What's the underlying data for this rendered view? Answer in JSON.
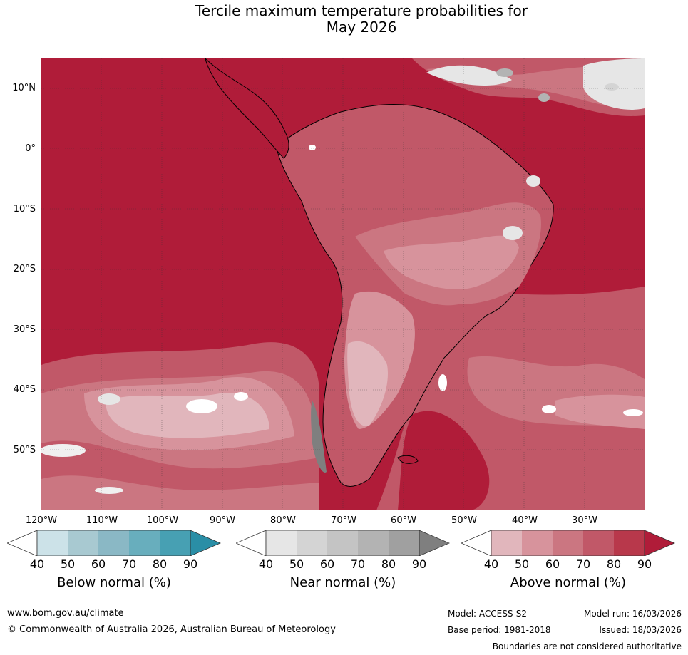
{
  "title_line1": "Tercile maximum temperature probabilities for",
  "title_line2": "May 2026",
  "lat_labels": [
    "10°N",
    "0°",
    "10°S",
    "20°S",
    "30°S",
    "40°S",
    "50°S"
  ],
  "lon_labels": [
    "120°W",
    "110°W",
    "100°W",
    "90°W",
    "80°W",
    "70°W",
    "60°W",
    "50°W",
    "40°W",
    "30°W"
  ],
  "colorbars": [
    {
      "label": "Below normal (%)",
      "ticks": [
        "40",
        "50",
        "60",
        "70",
        "80",
        "90"
      ],
      "colors": [
        "#ffffff",
        "#cce2e8",
        "#a8c9d1",
        "#8ab8c5",
        "#68aebd",
        "#47a0b3",
        "#2a8ea6"
      ]
    },
    {
      "label": "Near normal (%)",
      "ticks": [
        "40",
        "50",
        "60",
        "70",
        "80",
        "90"
      ],
      "colors": [
        "#ffffff",
        "#e6e6e6",
        "#d4d4d4",
        "#c4c4c4",
        "#b3b3b3",
        "#a0a0a0",
        "#7f7f7f"
      ]
    },
    {
      "label": "Above normal (%)",
      "ticks": [
        "40",
        "50",
        "60",
        "70",
        "80",
        "90"
      ],
      "colors": [
        "#ffffff",
        "#e1b6bc",
        "#d7939c",
        "#cb7681",
        "#c15868",
        "#b8384b",
        "#b01c39"
      ]
    }
  ],
  "footer": {
    "website": "www.bom.gov.au/climate",
    "copyright": "© Commonwealth of Australia 2026, Australian Bureau of Meteorology",
    "model": "Model: ACCESS-S2",
    "model_run": "Model run: 16/03/2026",
    "base_period": "Base period: 1981-2018",
    "issued": "Issued: 18/03/2026",
    "disclaimer": "Boundaries are not considered authoritative"
  }
}
